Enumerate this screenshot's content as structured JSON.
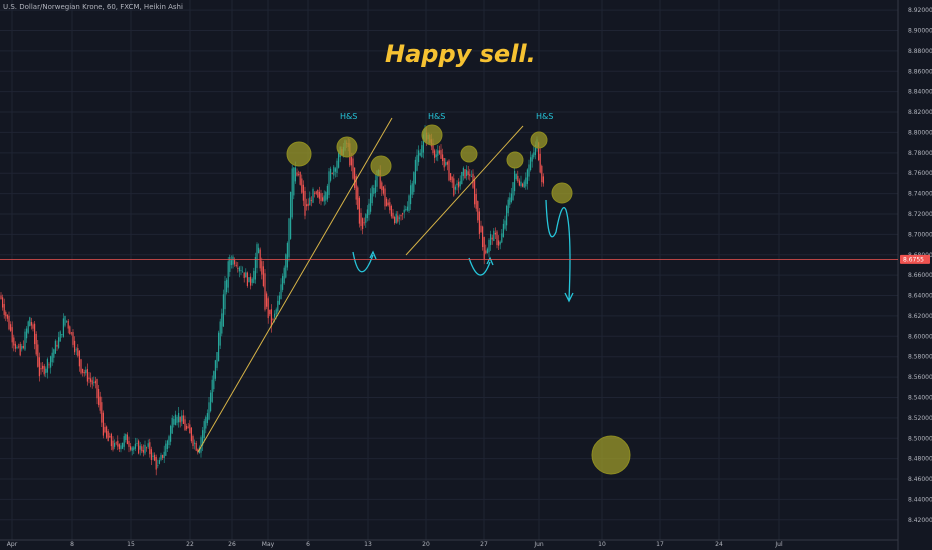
{
  "header": {
    "symbol_line": "U.S. Dollar/Norwegian Krone, 60, FXCM, Heikin Ashi"
  },
  "title": "Happy sell.",
  "price_label": "8.6755",
  "colors": {
    "background": "#131722",
    "up": "#26a69a",
    "down": "#ef5350",
    "trendline": "#d7b447",
    "circle": "#9c9a2a",
    "arrow": "#26c6da",
    "title": "#f6c232"
  },
  "chart_data": {
    "type": "candlestick",
    "chart_style": "Heikin Ashi",
    "timeframe": "60",
    "ylim": [
      8.41,
      8.925
    ],
    "y_ticks": [
      "8.92000",
      "8.90000",
      "8.88000",
      "8.86000",
      "8.84000",
      "8.82000",
      "8.80000",
      "8.78000",
      "8.76000",
      "8.74000",
      "8.72000",
      "8.70000",
      "8.68000",
      "8.66000",
      "8.64000",
      "8.62000",
      "8.60000",
      "8.58000",
      "8.56000",
      "8.54000",
      "8.52000",
      "8.50000",
      "8.48000",
      "8.46000",
      "8.44000",
      "8.42000"
    ],
    "x_ticks": [
      "Apr",
      "8",
      "15",
      "22",
      "26",
      "May",
      "6",
      "13",
      "20",
      "27",
      "Jun",
      "10",
      "17",
      "24",
      "Jul"
    ],
    "price_path": [
      [
        0,
        8.64
      ],
      [
        12,
        8.6
      ],
      [
        20,
        8.58
      ],
      [
        30,
        8.62
      ],
      [
        40,
        8.56
      ],
      [
        50,
        8.58
      ],
      [
        60,
        8.6
      ],
      [
        65,
        8.62
      ],
      [
        72,
        8.6
      ],
      [
        80,
        8.57
      ],
      [
        95,
        8.55
      ],
      [
        105,
        8.5
      ],
      [
        115,
        8.49
      ],
      [
        125,
        8.5
      ],
      [
        135,
        8.49
      ],
      [
        148,
        8.49
      ],
      [
        158,
        8.47
      ],
      [
        168,
        8.5
      ],
      [
        175,
        8.53
      ],
      [
        185,
        8.51
      ],
      [
        198,
        8.49
      ],
      [
        208,
        8.53
      ],
      [
        215,
        8.57
      ],
      [
        222,
        8.63
      ],
      [
        230,
        8.68
      ],
      [
        240,
        8.67
      ],
      [
        250,
        8.65
      ],
      [
        258,
        8.69
      ],
      [
        265,
        8.63
      ],
      [
        272,
        8.61
      ],
      [
        280,
        8.64
      ],
      [
        288,
        8.7
      ],
      [
        292,
        8.77
      ],
      [
        300,
        8.75
      ],
      [
        305,
        8.72
      ],
      [
        312,
        8.74
      ],
      [
        320,
        8.73
      ],
      [
        330,
        8.76
      ],
      [
        340,
        8.78
      ],
      [
        347,
        8.79
      ],
      [
        355,
        8.74
      ],
      [
        362,
        8.7
      ],
      [
        370,
        8.74
      ],
      [
        378,
        8.76
      ],
      [
        385,
        8.73
      ],
      [
        392,
        8.72
      ],
      [
        400,
        8.71
      ],
      [
        407,
        8.73
      ],
      [
        415,
        8.77
      ],
      [
        425,
        8.8
      ],
      [
        435,
        8.78
      ],
      [
        445,
        8.77
      ],
      [
        455,
        8.74
      ],
      [
        463,
        8.76
      ],
      [
        470,
        8.76
      ],
      [
        477,
        8.72
      ],
      [
        484,
        8.68
      ],
      [
        492,
        8.7
      ],
      [
        500,
        8.69
      ],
      [
        508,
        8.73
      ],
      [
        515,
        8.76
      ],
      [
        522,
        8.75
      ],
      [
        530,
        8.77
      ],
      [
        537,
        8.79
      ],
      [
        541,
        8.76
      ],
      [
        545,
        8.74
      ]
    ],
    "current_price": 8.6755,
    "annotations": [
      {
        "type": "text",
        "text": "H&S"
      },
      {
        "type": "text",
        "text": "H&S"
      },
      {
        "type": "text",
        "text": "H&S"
      }
    ]
  }
}
